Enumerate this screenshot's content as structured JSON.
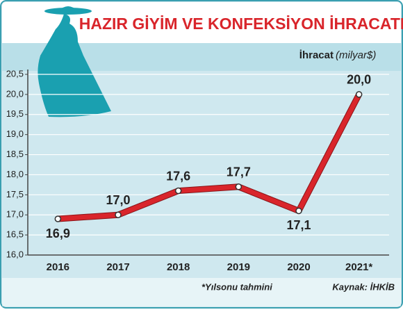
{
  "chart_data": {
    "type": "line",
    "title": "HAZIR GİYİM VE KONFEKSİYON İHRACATI",
    "ylabel": "İhracat",
    "ylabel_unit": "(milyar$)",
    "categories": [
      "2016",
      "2017",
      "2018",
      "2019",
      "2020",
      "2021*"
    ],
    "values": [
      16.9,
      17.0,
      17.6,
      17.7,
      17.1,
      20.0
    ],
    "value_labels": [
      "16,9",
      "17,0",
      "17,6",
      "17,7",
      "17,1",
      "20,0"
    ],
    "color": "#d9252b",
    "ylim": [
      16.0,
      20.5
    ],
    "yticks": [
      {
        "value": 16.0,
        "label": "16,0"
      },
      {
        "value": 16.5,
        "label": "16,5"
      },
      {
        "value": 17.0,
        "label": "17,0"
      },
      {
        "value": 17.5,
        "label": "17,5"
      },
      {
        "value": 18.0,
        "label": "18,0"
      },
      {
        "value": 18.5,
        "label": "18,5"
      },
      {
        "value": 19.0,
        "label": "19,0"
      },
      {
        "value": 19.5,
        "label": "19,5"
      },
      {
        "value": 20.0,
        "label": "20,0"
      },
      {
        "value": 20.5,
        "label": "20,5"
      }
    ],
    "grid": true,
    "note": "*Yılsonu tahmini",
    "source": "Kaynak: İHKİB"
  }
}
